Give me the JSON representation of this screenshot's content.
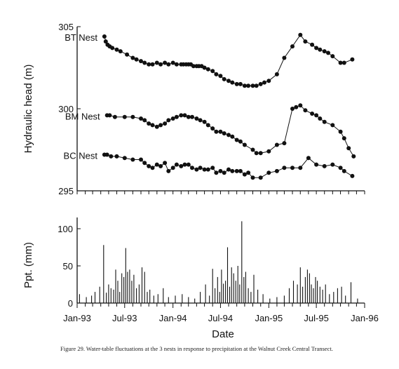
{
  "chart_data": [
    {
      "type": "line",
      "ylabel": "Hydraulic head (m)",
      "ylim": [
        295,
        305
      ],
      "yticks": [
        295,
        300,
        305
      ],
      "xlim": [
        "1993-01-01",
        "1996-01-01"
      ],
      "grid": false,
      "series": [
        {
          "name": "BT Nest",
          "x": [
            "1993-04-15",
            "1993-04-20",
            "1993-04-27",
            "1993-05-05",
            "1993-05-15",
            "1993-06-01",
            "1993-06-15",
            "1993-07-10",
            "1993-08-01",
            "1993-08-15",
            "1993-09-01",
            "1993-09-15",
            "1993-10-01",
            "1993-10-15",
            "1993-11-01",
            "1993-11-15",
            "1993-12-01",
            "1993-12-15",
            "1994-01-01",
            "1994-01-15",
            "1994-02-01",
            "1994-02-10",
            "1994-02-20",
            "1994-03-01",
            "1994-03-10",
            "1994-03-20",
            "1994-04-01",
            "1994-04-10",
            "1994-04-20",
            "1994-05-01",
            "1994-05-15",
            "1994-06-01",
            "1994-06-15",
            "1994-07-01",
            "1994-07-15",
            "1994-08-01",
            "1994-08-15",
            "1994-09-01",
            "1994-09-15",
            "1994-10-01",
            "1994-10-15",
            "1994-11-01",
            "1994-11-15",
            "1994-12-01",
            "1994-12-15",
            "1995-01-01",
            "1995-02-01",
            "1995-03-01",
            "1995-04-01",
            "1995-05-01",
            "1995-05-20",
            "1995-06-15",
            "1995-07-01",
            "1995-07-15",
            "1995-08-01",
            "1995-08-15",
            "1995-09-01",
            "1995-10-01",
            "1995-10-15",
            "1995-11-15"
          ],
          "values": [
            304.4,
            304.1,
            303.9,
            303.8,
            303.7,
            303.6,
            303.5,
            303.3,
            303.1,
            303.0,
            302.9,
            302.8,
            302.7,
            302.7,
            302.8,
            302.7,
            302.8,
            302.7,
            302.8,
            302.7,
            302.7,
            302.7,
            302.7,
            302.7,
            302.7,
            302.6,
            302.6,
            302.6,
            302.6,
            302.5,
            302.4,
            302.3,
            302.1,
            302.0,
            301.8,
            301.7,
            301.6,
            301.5,
            301.5,
            301.4,
            301.4,
            301.4,
            301.4,
            301.5,
            301.6,
            301.7,
            302.1,
            303.1,
            303.8,
            304.5,
            304.1,
            303.9,
            303.7,
            303.6,
            303.5,
            303.4,
            303.2,
            302.8,
            302.8,
            303.0
          ]
        },
        {
          "name": "BM Nest",
          "x": [
            "1993-04-25",
            "1993-05-05",
            "1993-05-25",
            "1993-07-01",
            "1993-08-01",
            "1993-09-01",
            "1993-09-15",
            "1993-10-01",
            "1993-10-15",
            "1993-11-01",
            "1993-11-15",
            "1993-12-01",
            "1993-12-15",
            "1994-01-01",
            "1994-01-15",
            "1994-02-01",
            "1994-02-15",
            "1994-03-01",
            "1994-03-15",
            "1994-04-01",
            "1994-04-15",
            "1994-05-01",
            "1994-05-15",
            "1994-06-01",
            "1994-06-15",
            "1994-07-01",
            "1994-07-15",
            "1994-08-01",
            "1994-08-15",
            "1994-09-01",
            "1994-09-15",
            "1994-10-01",
            "1994-11-01",
            "1994-11-15",
            "1994-12-01",
            "1995-01-01",
            "1995-02-01",
            "1995-03-01",
            "1995-04-01",
            "1995-04-15",
            "1995-05-01",
            "1995-05-20",
            "1995-06-15",
            "1995-07-01",
            "1995-07-15",
            "1995-08-01",
            "1995-09-01",
            "1995-10-01",
            "1995-10-15",
            "1995-11-01",
            "1995-11-20"
          ],
          "values": [
            299.6,
            299.6,
            299.5,
            299.5,
            299.5,
            299.4,
            299.3,
            299.1,
            299.0,
            298.9,
            299.0,
            299.1,
            299.3,
            299.4,
            299.5,
            299.6,
            299.6,
            299.5,
            299.5,
            299.4,
            299.3,
            299.2,
            299.0,
            298.8,
            298.6,
            298.6,
            298.5,
            298.4,
            298.3,
            298.1,
            298.0,
            297.8,
            297.5,
            297.3,
            297.3,
            297.4,
            297.8,
            297.9,
            300.0,
            300.1,
            300.2,
            299.9,
            299.7,
            299.6,
            299.4,
            299.2,
            299.0,
            298.6,
            298.2,
            297.6,
            297.1
          ]
        },
        {
          "name": "BC Nest",
          "x": [
            "1993-04-15",
            "1993-04-25",
            "1993-05-10",
            "1993-06-01",
            "1993-07-01",
            "1993-08-01",
            "1993-09-01",
            "1993-09-15",
            "1993-10-01",
            "1993-10-15",
            "1993-11-01",
            "1993-11-15",
            "1993-12-01",
            "1993-12-15",
            "1994-01-01",
            "1994-01-15",
            "1994-02-01",
            "1994-02-15",
            "1994-03-01",
            "1994-03-15",
            "1994-04-01",
            "1994-04-15",
            "1994-05-01",
            "1994-05-15",
            "1994-06-01",
            "1994-06-15",
            "1994-07-01",
            "1994-07-15",
            "1994-08-01",
            "1994-08-15",
            "1994-09-01",
            "1994-09-15",
            "1994-10-01",
            "1994-10-15",
            "1994-11-01",
            "1994-12-01",
            "1995-01-01",
            "1995-02-01",
            "1995-03-01",
            "1995-04-01",
            "1995-05-01",
            "1995-06-01",
            "1995-07-01",
            "1995-08-01",
            "1995-09-01",
            "1995-10-01",
            "1995-10-15",
            "1995-11-15"
          ],
          "values": [
            297.2,
            297.2,
            297.1,
            297.1,
            297.0,
            296.9,
            296.9,
            296.7,
            296.5,
            296.4,
            296.6,
            296.5,
            296.7,
            296.2,
            296.4,
            296.6,
            296.5,
            296.6,
            296.6,
            296.4,
            296.3,
            296.4,
            296.3,
            296.3,
            296.4,
            296.1,
            296.2,
            296.1,
            296.3,
            296.2,
            296.2,
            296.2,
            296.0,
            296.1,
            295.8,
            295.8,
            296.1,
            296.2,
            296.4,
            296.4,
            296.4,
            297.0,
            296.6,
            296.5,
            296.6,
            296.4,
            296.2,
            295.9
          ]
        }
      ]
    },
    {
      "type": "bar",
      "ylabel": "Ppt. (mm)",
      "xlabel": "Date",
      "ylim": [
        0,
        110
      ],
      "yticks": [
        0,
        50,
        100
      ],
      "xlim": [
        "1993-01-01",
        "1996-01-01"
      ],
      "xticks": [
        "1993-01-01",
        "1993-07-01",
        "1994-01-01",
        "1994-07-01",
        "1995-01-01",
        "1995-07-01",
        "1996-01-01"
      ],
      "xtick_labels": [
        "Jan-93",
        "Jul-93",
        "Jan-94",
        "Jul-94",
        "Jan-95",
        "Jul-95",
        "Jan-96"
      ],
      "grid": false,
      "series": [
        {
          "x": [
            "1993-01-10",
            "1993-02-05",
            "1993-02-25",
            "1993-03-10",
            "1993-03-28",
            "1993-04-12",
            "1993-04-22",
            "1993-05-01",
            "1993-05-10",
            "1993-05-20",
            "1993-05-28",
            "1993-06-05",
            "1993-06-12",
            "1993-06-20",
            "1993-06-28",
            "1993-07-05",
            "1993-07-12",
            "1993-07-20",
            "1993-07-28",
            "1993-08-05",
            "1993-08-15",
            "1993-08-25",
            "1993-09-05",
            "1993-09-15",
            "1993-09-25",
            "1993-10-05",
            "1993-10-20",
            "1993-11-05",
            "1993-11-25",
            "1993-12-15",
            "1994-01-10",
            "1994-02-05",
            "1994-03-01",
            "1994-03-25",
            "1994-04-15",
            "1994-05-05",
            "1994-05-20",
            "1994-06-01",
            "1994-06-10",
            "1994-06-20",
            "1994-06-28",
            "1994-07-05",
            "1994-07-12",
            "1994-07-20",
            "1994-07-28",
            "1994-08-05",
            "1994-08-12",
            "1994-08-20",
            "1994-08-28",
            "1994-09-05",
            "1994-09-12",
            "1994-09-20",
            "1994-09-28",
            "1994-10-05",
            "1994-10-15",
            "1994-10-25",
            "1994-11-05",
            "1994-11-20",
            "1994-12-10",
            "1995-01-05",
            "1995-02-01",
            "1995-03-01",
            "1995-03-20",
            "1995-04-05",
            "1995-04-20",
            "1995-05-01",
            "1995-05-10",
            "1995-05-20",
            "1995-05-28",
            "1995-06-05",
            "1995-06-12",
            "1995-06-20",
            "1995-06-28",
            "1995-07-05",
            "1995-07-15",
            "1995-07-25",
            "1995-08-05",
            "1995-08-20",
            "1995-09-05",
            "1995-09-20",
            "1995-10-05",
            "1995-10-20",
            "1995-11-10",
            "1995-12-05"
          ],
          "values": [
            12,
            8,
            10,
            15,
            22,
            78,
            14,
            25,
            20,
            18,
            45,
            30,
            15,
            40,
            35,
            74,
            42,
            45,
            30,
            38,
            20,
            25,
            48,
            42,
            15,
            18,
            10,
            12,
            20,
            8,
            10,
            12,
            8,
            6,
            15,
            25,
            10,
            46,
            20,
            35,
            15,
            45,
            26,
            30,
            75,
            22,
            48,
            40,
            30,
            50,
            25,
            110,
            35,
            42,
            20,
            15,
            38,
            18,
            12,
            6,
            8,
            10,
            20,
            30,
            25,
            48,
            22,
            35,
            45,
            40,
            25,
            20,
            35,
            30,
            22,
            18,
            25,
            12,
            15,
            20,
            22,
            10,
            28,
            6
          ]
        }
      ]
    }
  ],
  "caption": "Figure 29. Water-table fluctuations at the 3 nests in response to precipitation at the Walnut Creek Central Transect."
}
